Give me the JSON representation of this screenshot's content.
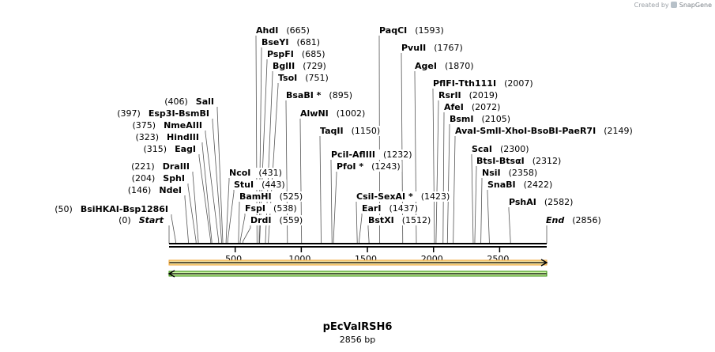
{
  "credit": {
    "prefix": "Created by",
    "brand": "SnapGene"
  },
  "plasmid": {
    "name": "pEcValRSH6",
    "size_label": "2856 bp",
    "length_bp": 2856
  },
  "colors": {
    "feature_forward": "#f0a030",
    "feature_forward_fill": "#f8e4a0",
    "feature_reverse": "#2e8b00",
    "feature_reverse_fill": "#c8f0a0",
    "backbone": "#000000",
    "leader": "#555555"
  },
  "axis": {
    "ticks": [
      500,
      1000,
      1500,
      2000,
      2500
    ],
    "tick_labels": [
      "500",
      "1000",
      "1500",
      "2000",
      "2500"
    ]
  },
  "features": [
    {
      "name": "forward-feature-arrow",
      "start": 0,
      "end": 2856,
      "direction": "forward"
    },
    {
      "name": "reverse-feature-arrow",
      "start": 0,
      "end": 2856,
      "direction": "reverse"
    }
  ],
  "sites": [
    {
      "id": "ahdi",
      "names": [
        "AhdI"
      ],
      "pos": "(665)",
      "bp": 665
    },
    {
      "id": "bseyi",
      "names": [
        "BseYI"
      ],
      "pos": "(681)",
      "bp": 681
    },
    {
      "id": "pspfi",
      "names": [
        "PspFI"
      ],
      "pos": "(685)",
      "bp": 685
    },
    {
      "id": "bglii",
      "names": [
        "BglII"
      ],
      "pos": "(729)",
      "bp": 729
    },
    {
      "id": "tsoi",
      "names": [
        "TsoI"
      ],
      "pos": "(751)",
      "bp": 751
    },
    {
      "id": "bsabi",
      "names": [
        "BsaBI *"
      ],
      "pos": "(895)",
      "bp": 895
    },
    {
      "id": "alwni",
      "names": [
        "AlwNI"
      ],
      "pos": "(1002)",
      "bp": 1002
    },
    {
      "id": "taqii",
      "names": [
        "TaqII"
      ],
      "pos": "(1150)",
      "bp": 1150
    },
    {
      "id": "ncoi",
      "names": [
        "NcoI"
      ],
      "pos": "(431)",
      "bp": 431
    },
    {
      "id": "stui",
      "names": [
        "StuI"
      ],
      "pos": "(443)",
      "bp": 443
    },
    {
      "id": "bamhi",
      "names": [
        "BamHI"
      ],
      "pos": "(525)",
      "bp": 525
    },
    {
      "id": "fspi",
      "names": [
        "FspI"
      ],
      "pos": "(538)",
      "bp": 538
    },
    {
      "id": "drdi",
      "names": [
        "DrdI"
      ],
      "pos": "(559)",
      "bp": 559
    },
    {
      "id": "sali",
      "names": [
        "SalI"
      ],
      "pos": "(406)",
      "bp": 406
    },
    {
      "id": "esp3i",
      "names": [
        "Esp3I",
        "BsmBI"
      ],
      "pos": "(397)",
      "bp": 397
    },
    {
      "id": "nmeaiii",
      "names": [
        "NmeAIII"
      ],
      "pos": "(375)",
      "bp": 375
    },
    {
      "id": "hindiii",
      "names": [
        "HindIII"
      ],
      "pos": "(323)",
      "bp": 323
    },
    {
      "id": "eagi",
      "names": [
        "EagI"
      ],
      "pos": "(315)",
      "bp": 315
    },
    {
      "id": "draiii",
      "names": [
        "DraIII"
      ],
      "pos": "(221)",
      "bp": 221
    },
    {
      "id": "sphi",
      "names": [
        "SphI"
      ],
      "pos": "(204)",
      "bp": 204
    },
    {
      "id": "ndei",
      "names": [
        "NdeI"
      ],
      "pos": "(146)",
      "bp": 146
    },
    {
      "id": "bsihkai",
      "names": [
        "BsiHKAI",
        "Bsp1286I"
      ],
      "pos": "(50)",
      "bp": 50
    },
    {
      "id": "start",
      "names": [
        "Start"
      ],
      "pos": "(0)",
      "bp": 0,
      "italic": true
    },
    {
      "id": "paqci",
      "names": [
        "PaqCI"
      ],
      "pos": "(1593)",
      "bp": 1593
    },
    {
      "id": "pvuii",
      "names": [
        "PvuII"
      ],
      "pos": "(1767)",
      "bp": 1767
    },
    {
      "id": "agei",
      "names": [
        "AgeI"
      ],
      "pos": "(1870)",
      "bp": 1870
    },
    {
      "id": "pflfi",
      "names": [
        "PflFI",
        "Tth111I"
      ],
      "pos": "(2007)",
      "bp": 2007
    },
    {
      "id": "rsrii",
      "names": [
        "RsrII"
      ],
      "pos": "(2019)",
      "bp": 2019
    },
    {
      "id": "afei",
      "names": [
        "AfeI"
      ],
      "pos": "(2072)",
      "bp": 2072
    },
    {
      "id": "bsmi",
      "names": [
        "BsmI"
      ],
      "pos": "(2105)",
      "bp": 2105
    },
    {
      "id": "avai",
      "names": [
        "AvaI",
        "SmlI",
        "XhoI",
        "BsoBI",
        "PaeR7I"
      ],
      "pos": "(2149)",
      "bp": 2149
    },
    {
      "id": "scai",
      "names": [
        "ScaI"
      ],
      "pos": "(2300)",
      "bp": 2300
    },
    {
      "id": "btsi",
      "names": [
        "BtsI",
        "BtsαI"
      ],
      "pos": "(2312)",
      "bp": 2312
    },
    {
      "id": "nsii",
      "names": [
        "NsiI"
      ],
      "pos": "(2358)",
      "bp": 2358
    },
    {
      "id": "snabi",
      "names": [
        "SnaBI"
      ],
      "pos": "(2422)",
      "bp": 2422
    },
    {
      "id": "pshai",
      "names": [
        "PshAI"
      ],
      "pos": "(2582)",
      "bp": 2582
    },
    {
      "id": "end",
      "names": [
        "End"
      ],
      "pos": "(2856)",
      "bp": 2856,
      "italic": true
    },
    {
      "id": "pcii",
      "names": [
        "PciI",
        "AflIII"
      ],
      "pos": "(1232)",
      "bp": 1232
    },
    {
      "id": "pfoi",
      "names": [
        "PfoI *"
      ],
      "pos": "(1243)",
      "bp": 1243
    },
    {
      "id": "csii",
      "names": [
        "CsiI",
        "SexAI *"
      ],
      "pos": "(1423)",
      "bp": 1423
    },
    {
      "id": "eari",
      "names": [
        "EarI"
      ],
      "pos": "(1437)",
      "bp": 1437
    },
    {
      "id": "bstxi",
      "names": [
        "BstXI"
      ],
      "pos": "(1512)",
      "bp": 1512
    }
  ]
}
